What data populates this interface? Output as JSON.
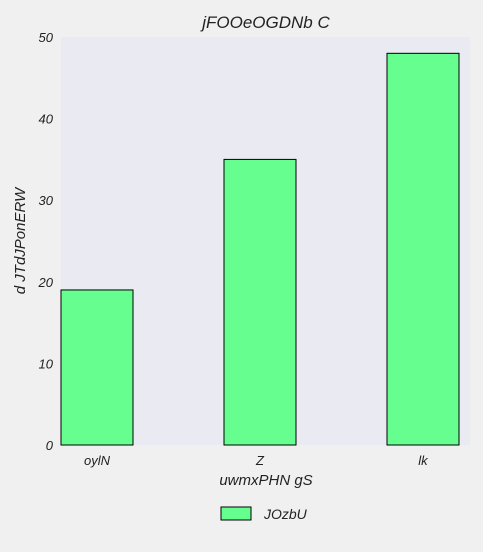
{
  "chart_data": {
    "type": "bar",
    "title": "jFOOeOGDNb C",
    "xlabel": "uwmxPHN gS",
    "ylabel": "d  JTdJPonERW",
    "categories": [
      "oylN",
      "Z",
      "lk"
    ],
    "series": [
      {
        "name": "JOzbU",
        "values": [
          19,
          35,
          48
        ],
        "color": "#66ff8f"
      }
    ],
    "ylim": [
      0,
      50
    ],
    "yticks": [
      0,
      10,
      20,
      30,
      40,
      50
    ],
    "grid": false,
    "legend_position": "bottom-center",
    "plot_background": "#eaeaf2"
  }
}
